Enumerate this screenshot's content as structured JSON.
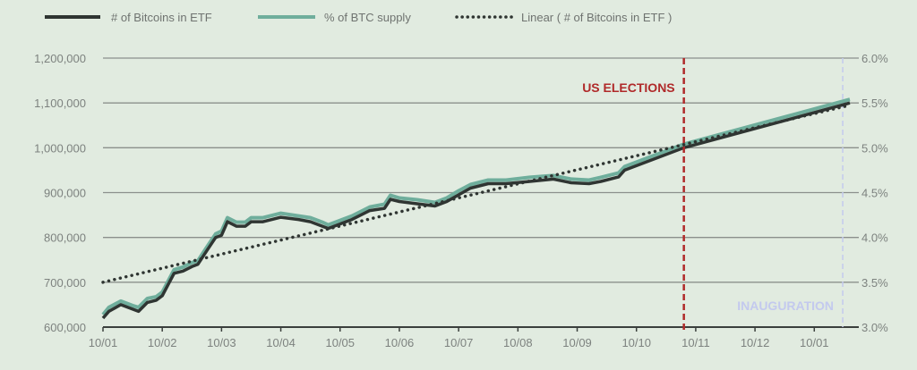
{
  "chart_data": {
    "type": "line",
    "title": "",
    "legend": [
      "# of Bitcoins in ETF",
      "% of BTC supply",
      "Linear ( # of Bitcoins in ETF )"
    ],
    "legend_position": "top",
    "x_tick_labels": [
      "10/01",
      "10/02",
      "10/03",
      "10/04",
      "10/05",
      "10/06",
      "10/07",
      "10/08",
      "10/09",
      "10/10",
      "10/11",
      "10/12",
      "10/01"
    ],
    "x_range": [
      0,
      12.6
    ],
    "y_left": {
      "ticks": [
        "600,000",
        "700,000",
        "800,000",
        "900,000",
        "1,000,000",
        "1,100,000",
        "1,200,000"
      ],
      "range": [
        600000,
        1200000
      ]
    },
    "y_right": {
      "ticks": [
        "3.0%",
        "3.5%",
        "4.0%",
        "4.5%",
        "5.0%",
        "5.5%",
        "6.0%"
      ],
      "range": [
        3.0,
        6.0
      ]
    },
    "x": [
      0,
      0.1,
      0.3,
      0.5,
      0.6,
      0.75,
      0.9,
      1.0,
      1.2,
      1.35,
      1.5,
      1.6,
      1.75,
      1.9,
      2.0,
      2.1,
      2.25,
      2.4,
      2.5,
      2.7,
      3.0,
      3.3,
      3.5,
      3.7,
      3.8,
      4.0,
      4.2,
      4.5,
      4.75,
      4.85,
      5.0,
      5.3,
      5.6,
      5.8,
      6.0,
      6.2,
      6.5,
      6.8,
      7.2,
      7.6,
      7.9,
      8.2,
      8.4,
      8.7,
      8.8,
      9.0,
      9.8,
      12.6
    ],
    "series": [
      {
        "name": "# of Bitcoins in ETF",
        "axis": "left",
        "color": "#2f3532",
        "values": [
          620000,
          635000,
          650000,
          640000,
          635000,
          655000,
          660000,
          670000,
          720000,
          725000,
          735000,
          740000,
          770000,
          800000,
          805000,
          835000,
          825000,
          825000,
          835000,
          835000,
          845000,
          840000,
          835000,
          825000,
          820000,
          830000,
          840000,
          860000,
          865000,
          885000,
          880000,
          875000,
          870000,
          880000,
          895000,
          910000,
          920000,
          920000,
          925000,
          930000,
          922000,
          920000,
          925000,
          935000,
          950000,
          960000,
          1000000,
          1100000
        ]
      },
      {
        "name": "% of BTC supply",
        "axis": "right",
        "color": "#6fae9c",
        "values": [
          3.14,
          3.22,
          3.29,
          3.24,
          3.22,
          3.32,
          3.34,
          3.39,
          3.64,
          3.67,
          3.72,
          3.74,
          3.89,
          4.04,
          4.07,
          4.22,
          4.17,
          4.17,
          4.22,
          4.22,
          4.27,
          4.24,
          4.22,
          4.17,
          4.14,
          4.19,
          4.24,
          4.34,
          4.37,
          4.47,
          4.44,
          4.42,
          4.39,
          4.44,
          4.52,
          4.59,
          4.64,
          4.64,
          4.67,
          4.69,
          4.65,
          4.64,
          4.67,
          4.72,
          4.79,
          4.84,
          5.04,
          5.54
        ]
      },
      {
        "name": "Linear ( # of Bitcoins in ETF )",
        "axis": "left",
        "style": "dotted",
        "color": "#2f3532",
        "x": [
          0,
          12.6
        ],
        "values": [
          700000,
          1095000
        ]
      }
    ],
    "annotations": [
      {
        "label": "US ELECTIONS",
        "x": 9.8,
        "color": "#b02a2a"
      },
      {
        "label": "INAUGURATION",
        "x": 12.48,
        "color": "#c3c9ee"
      }
    ],
    "grid": true
  }
}
